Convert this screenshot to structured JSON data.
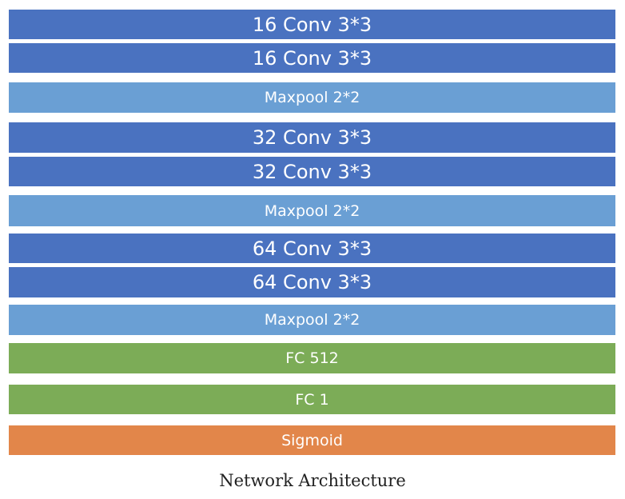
{
  "diagram": {
    "layers": [
      {
        "label": "16 Conv 3*3",
        "kind": "conv"
      },
      {
        "label": "16 Conv 3*3",
        "kind": "conv"
      },
      {
        "label": "Maxpool 2*2",
        "kind": "pool"
      },
      {
        "label": "32 Conv 3*3",
        "kind": "conv"
      },
      {
        "label": "32 Conv 3*3",
        "kind": "conv"
      },
      {
        "label": "Maxpool 2*2",
        "kind": "pool"
      },
      {
        "label": "64 Conv 3*3",
        "kind": "conv"
      },
      {
        "label": "64 Conv 3*3",
        "kind": "conv"
      },
      {
        "label": "Maxpool 2*2",
        "kind": "pool"
      },
      {
        "label": "FC 512",
        "kind": "fc"
      },
      {
        "label": "FC 1",
        "kind": "fc"
      },
      {
        "label": "Sigmoid",
        "kind": "activation"
      }
    ],
    "caption": "Network Architecture",
    "colors": {
      "conv": "#4a72c0",
      "pool": "#6a9fd4",
      "fc": "#7cac57",
      "activation": "#e2864a"
    }
  }
}
